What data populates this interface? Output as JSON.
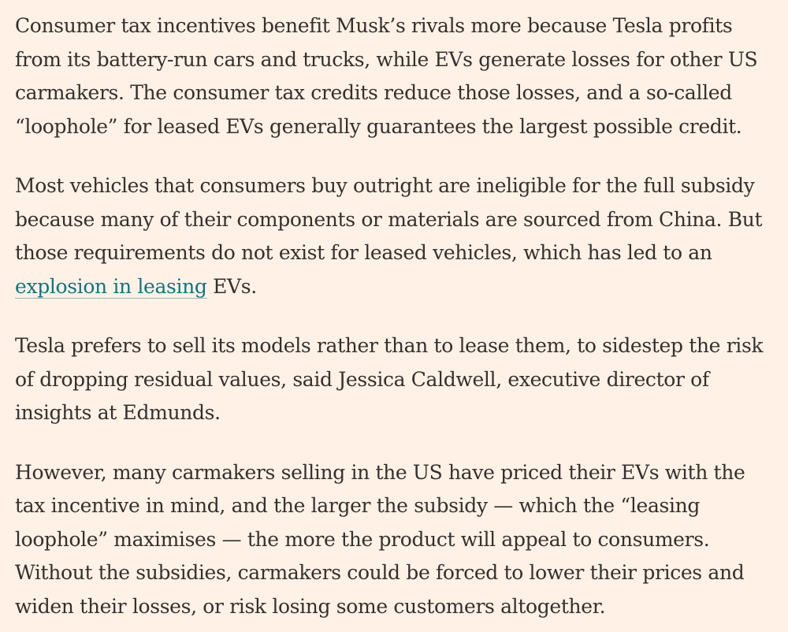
{
  "article": {
    "paragraphs": [
      {
        "text": "Consumer tax incentives benefit Musk’s rivals more because Tesla profits from its battery-run cars and trucks, while EVs generate losses for other US carmakers. The consumer tax credits reduce those losses, and a so-called “loophole” for leased EVs generally guarantees the largest possible credit."
      },
      {
        "before": "Most vehicles that consumers buy outright are ineligible for the full subsidy because many of their components or materials are sourced from China. But those requirements do not exist for leased vehicles, which has led to an ",
        "link": "explosion in leasing",
        "after": " EVs."
      },
      {
        "text": "Tesla prefers to sell its models rather than to lease them, to sidestep the risk of dropping residual values, said Jessica Caldwell, executive director of insights at Edmunds."
      },
      {
        "text": "However, many carmakers selling in the US have priced their EVs with the tax incentive in mind, and the larger the subsidy — which the “leasing loophole” maximises — the more the product will appeal to consumers. Without the subsidies, carmakers could be forced to lower their prices and widen their losses, or risk losing some customers altogether."
      }
    ]
  },
  "colors": {
    "background": "#fff1e5",
    "text": "#33302e",
    "link": "#0d7680"
  }
}
